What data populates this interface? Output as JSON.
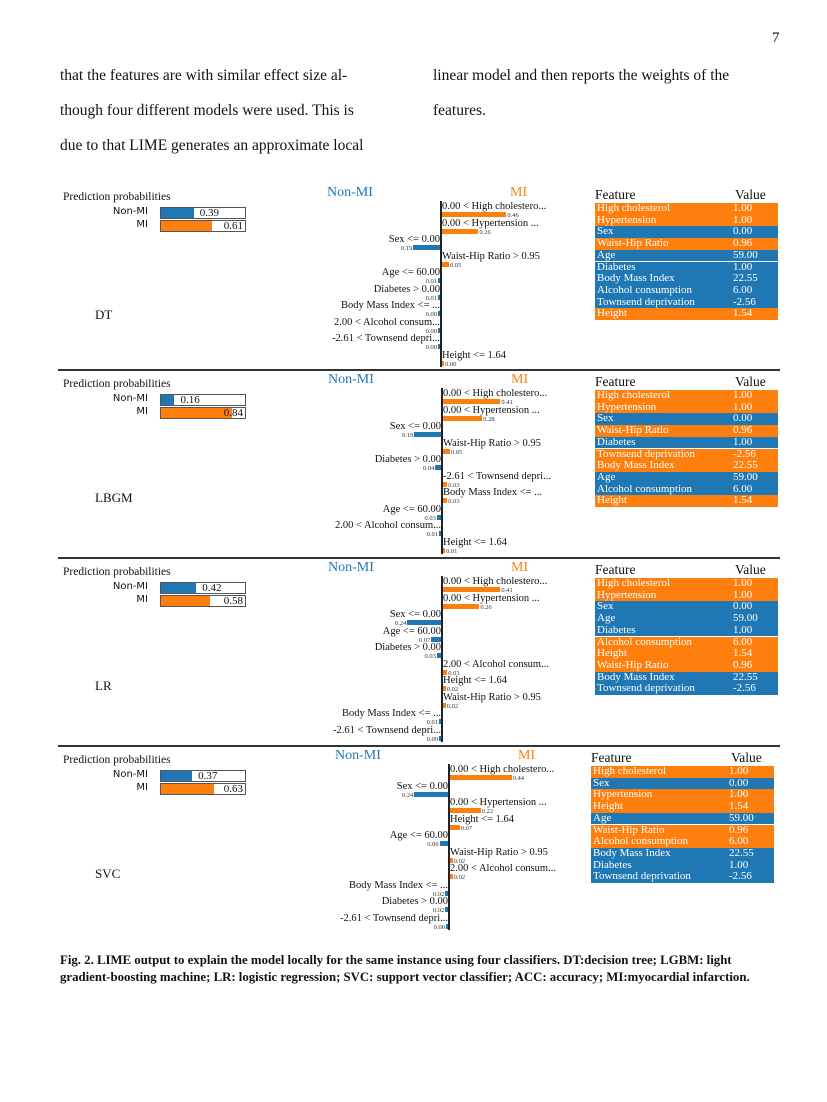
{
  "page_number": "7",
  "body_text": {
    "left": [
      "that the features are with similar effect size al-",
      "though four different models were used.  This is",
      "due to that LIME generates an approximate local"
    ],
    "right": [
      "linear model and then reports the weights of the",
      "features."
    ]
  },
  "colors": {
    "non_mi": "#1f77b4",
    "mi": "#ff7f0e"
  },
  "labels": {
    "prediction_probabilities": "Prediction probabilities",
    "class_neg": "Non-MI",
    "class_pos": "MI",
    "feature_header": "Feature",
    "value_header": "Value"
  },
  "chart_data": [
    {
      "type": "bar",
      "model": "DT",
      "prediction_probabilities": {
        "Non-MI": 0.39,
        "MI": 0.61
      },
      "features": [
        {
          "condition": "0.00 < High cholestero...",
          "weight": 0.46,
          "class": "MI",
          "weight_label": "0.46"
        },
        {
          "condition": "0.00 < Hypertension ...",
          "weight": 0.26,
          "class": "MI",
          "weight_label": "0.26"
        },
        {
          "condition": "Sex <= 0.00",
          "weight": 0.19,
          "class": "Non-MI",
          "weight_label": "0.19"
        },
        {
          "condition": "Waist-Hip Ratio > 0.95",
          "weight": 0.05,
          "class": "MI",
          "weight_label": "0.05"
        },
        {
          "condition": "Age <= 60.00",
          "weight": 0.01,
          "class": "Non-MI",
          "weight_label": "0.01"
        },
        {
          "condition": "Diabetes > 0.00",
          "weight": 0.01,
          "class": "Non-MI",
          "weight_label": "0.01"
        },
        {
          "condition": "Body Mass Index <= ...",
          "weight": 0.0,
          "class": "Non-MI",
          "weight_label": "0.00"
        },
        {
          "condition": "2.00 < Alcohol consum...",
          "weight": 0.0,
          "class": "Non-MI",
          "weight_label": "0.00"
        },
        {
          "condition": "-2.61 < Townsend depri...",
          "weight": 0.0,
          "class": "Non-MI",
          "weight_label": "0.00"
        },
        {
          "condition": "Height <= 1.64",
          "weight": 0.0,
          "class": "MI",
          "weight_label": "0.00"
        }
      ],
      "table": [
        {
          "feature": "High cholesterol",
          "value": "1.00",
          "class": "MI"
        },
        {
          "feature": "Hypertension",
          "value": "1.00",
          "class": "MI"
        },
        {
          "feature": "Sex",
          "value": "0.00",
          "class": "Non-MI"
        },
        {
          "feature": "Waist-Hip Ratio",
          "value": "0.96",
          "class": "MI"
        },
        {
          "feature": "Age",
          "value": "59.00",
          "class": "Non-MI"
        },
        {
          "feature": "Diabetes",
          "value": "1.00",
          "class": "Non-MI"
        },
        {
          "feature": "Body Mass Index",
          "value": "22.55",
          "class": "Non-MI"
        },
        {
          "feature": "Alcohol consumption",
          "value": "6.00",
          "class": "Non-MI"
        },
        {
          "feature": "Townsend deprivation",
          "value": "-2.56",
          "class": "Non-MI"
        },
        {
          "feature": "Height",
          "value": "1.54",
          "class": "MI"
        }
      ]
    },
    {
      "type": "bar",
      "model": "LBGM",
      "prediction_probabilities": {
        "Non-MI": 0.16,
        "MI": 0.84
      },
      "features": [
        {
          "condition": "0.00 < High cholestero...",
          "weight": 0.41,
          "class": "MI",
          "weight_label": "0.41"
        },
        {
          "condition": "0.00 < Hypertension ...",
          "weight": 0.28,
          "class": "MI",
          "weight_label": "0.28"
        },
        {
          "condition": "Sex <= 0.00",
          "weight": 0.19,
          "class": "Non-MI",
          "weight_label": "0.19"
        },
        {
          "condition": "Waist-Hip Ratio > 0.95",
          "weight": 0.05,
          "class": "MI",
          "weight_label": "0.05"
        },
        {
          "condition": "Diabetes > 0.00",
          "weight": 0.04,
          "class": "Non-MI",
          "weight_label": "0.04"
        },
        {
          "condition": "-2.61 < Townsend depri...",
          "weight": 0.03,
          "class": "MI",
          "weight_label": "0.03"
        },
        {
          "condition": "Body Mass Index <= ...",
          "weight": 0.03,
          "class": "MI",
          "weight_label": "0.03"
        },
        {
          "condition": "Age <= 60.00",
          "weight": 0.03,
          "class": "Non-MI",
          "weight_label": "0.03"
        },
        {
          "condition": "2.00 < Alcohol consum...",
          "weight": 0.01,
          "class": "Non-MI",
          "weight_label": "0.01"
        },
        {
          "condition": "Height <= 1.64",
          "weight": 0.01,
          "class": "MI",
          "weight_label": "0.01"
        }
      ],
      "table": [
        {
          "feature": "High cholesterol",
          "value": "1.00",
          "class": "MI"
        },
        {
          "feature": "Hypertension",
          "value": "1.00",
          "class": "MI"
        },
        {
          "feature": "Sex",
          "value": "0.00",
          "class": "Non-MI"
        },
        {
          "feature": "Waist-Hip Ratio",
          "value": "0.96",
          "class": "MI"
        },
        {
          "feature": "Diabetes",
          "value": "1.00",
          "class": "Non-MI"
        },
        {
          "feature": "Townsend deprivation",
          "value": "-2.56",
          "class": "MI"
        },
        {
          "feature": "Body Mass Index",
          "value": "22.55",
          "class": "MI"
        },
        {
          "feature": "Age",
          "value": "59.00",
          "class": "Non-MI"
        },
        {
          "feature": "Alcohol consumption",
          "value": "6.00",
          "class": "Non-MI"
        },
        {
          "feature": "Height",
          "value": "1.54",
          "class": "MI"
        }
      ]
    },
    {
      "type": "bar",
      "model": "LR",
      "prediction_probabilities": {
        "Non-MI": 0.42,
        "MI": 0.58
      },
      "features": [
        {
          "condition": "0.00 < High cholestero...",
          "weight": 0.41,
          "class": "MI",
          "weight_label": "0.41"
        },
        {
          "condition": "0.00 < Hypertension ...",
          "weight": 0.26,
          "class": "MI",
          "weight_label": "0.26"
        },
        {
          "condition": "Sex <= 0.00",
          "weight": 0.24,
          "class": "Non-MI",
          "weight_label": "0.24"
        },
        {
          "condition": "Age <= 60.00",
          "weight": 0.07,
          "class": "Non-MI",
          "weight_label": "0.07"
        },
        {
          "condition": "Diabetes > 0.00",
          "weight": 0.03,
          "class": "Non-MI",
          "weight_label": "0.03"
        },
        {
          "condition": "2.00 < Alcohol consum...",
          "weight": 0.03,
          "class": "MI",
          "weight_label": "0.03"
        },
        {
          "condition": "Height <= 1.64",
          "weight": 0.02,
          "class": "MI",
          "weight_label": "0.02"
        },
        {
          "condition": "Waist-Hip Ratio > 0.95",
          "weight": 0.02,
          "class": "MI",
          "weight_label": "0.02"
        },
        {
          "condition": "Body Mass Index <= ...",
          "weight": 0.01,
          "class": "Non-MI",
          "weight_label": "0.01"
        },
        {
          "condition": "-2.61 < Townsend depri...",
          "weight": 0.0,
          "class": "Non-MI",
          "weight_label": "0.00"
        }
      ],
      "table": [
        {
          "feature": "High cholesterol",
          "value": "1.00",
          "class": "MI"
        },
        {
          "feature": "Hypertension",
          "value": "1.00",
          "class": "MI"
        },
        {
          "feature": "Sex",
          "value": "0.00",
          "class": "Non-MI"
        },
        {
          "feature": "Age",
          "value": "59.00",
          "class": "Non-MI"
        },
        {
          "feature": "Diabetes",
          "value": "1.00",
          "class": "Non-MI"
        },
        {
          "feature": "Alcohol consumption",
          "value": "6.00",
          "class": "MI"
        },
        {
          "feature": "Height",
          "value": "1.54",
          "class": "MI"
        },
        {
          "feature": "Waist-Hip Ratio",
          "value": "0.96",
          "class": "MI"
        },
        {
          "feature": "Body Mass Index",
          "value": "22.55",
          "class": "Non-MI"
        },
        {
          "feature": "Townsend deprivation",
          "value": "-2.56",
          "class": "Non-MI"
        }
      ]
    },
    {
      "type": "bar",
      "model": "SVC",
      "prediction_probabilities": {
        "Non-MI": 0.37,
        "MI": 0.63
      },
      "features": [
        {
          "condition": "0.00 < High cholestero...",
          "weight": 0.44,
          "class": "MI",
          "weight_label": "0.44"
        },
        {
          "condition": "Sex <= 0.00",
          "weight": 0.24,
          "class": "Non-MI",
          "weight_label": "0.24"
        },
        {
          "condition": "0.00 < Hypertension ...",
          "weight": 0.22,
          "class": "MI",
          "weight_label": "0.22"
        },
        {
          "condition": "Height <= 1.64",
          "weight": 0.07,
          "class": "MI",
          "weight_label": "0.07"
        },
        {
          "condition": "Age <= 60.00",
          "weight": 0.06,
          "class": "Non-MI",
          "weight_label": "0.06"
        },
        {
          "condition": "Waist-Hip Ratio > 0.95",
          "weight": 0.02,
          "class": "MI",
          "weight_label": "0.02"
        },
        {
          "condition": "2.00 < Alcohol consum...",
          "weight": 0.02,
          "class": "MI",
          "weight_label": "0.02"
        },
        {
          "condition": "Body Mass Index <= ...",
          "weight": 0.02,
          "class": "Non-MI",
          "weight_label": "0.02"
        },
        {
          "condition": "Diabetes > 0.00",
          "weight": 0.02,
          "class": "Non-MI",
          "weight_label": "0.02"
        },
        {
          "condition": "-2.61 < Townsend depri...",
          "weight": 0.0,
          "class": "Non-MI",
          "weight_label": "0.00"
        }
      ],
      "table": [
        {
          "feature": "High cholesterol",
          "value": "1.00",
          "class": "MI"
        },
        {
          "feature": "Sex",
          "value": "0.00",
          "class": "Non-MI"
        },
        {
          "feature": "Hypertension",
          "value": "1.00",
          "class": "MI"
        },
        {
          "feature": "Height",
          "value": "1.54",
          "class": "MI"
        },
        {
          "feature": "Age",
          "value": "59.00",
          "class": "Non-MI"
        },
        {
          "feature": "Waist-Hip Ratio",
          "value": "0.96",
          "class": "MI"
        },
        {
          "feature": "Alcohol consumption",
          "value": "6.00",
          "class": "MI"
        },
        {
          "feature": "Body Mass Index",
          "value": "22.55",
          "class": "Non-MI"
        },
        {
          "feature": "Diabetes",
          "value": "1.00",
          "class": "Non-MI"
        },
        {
          "feature": "Townsend deprivation",
          "value": "-2.56",
          "class": "Non-MI"
        }
      ]
    }
  ],
  "caption": "Fig. 2. LIME output to explain the model locally for the same instance using four classifiers. DT:decision tree; LGBM: light gradient-boosting machine; LR: logistic regression; SVC: support vector classifier; ACC: accuracy; MI:myocardial infarction."
}
